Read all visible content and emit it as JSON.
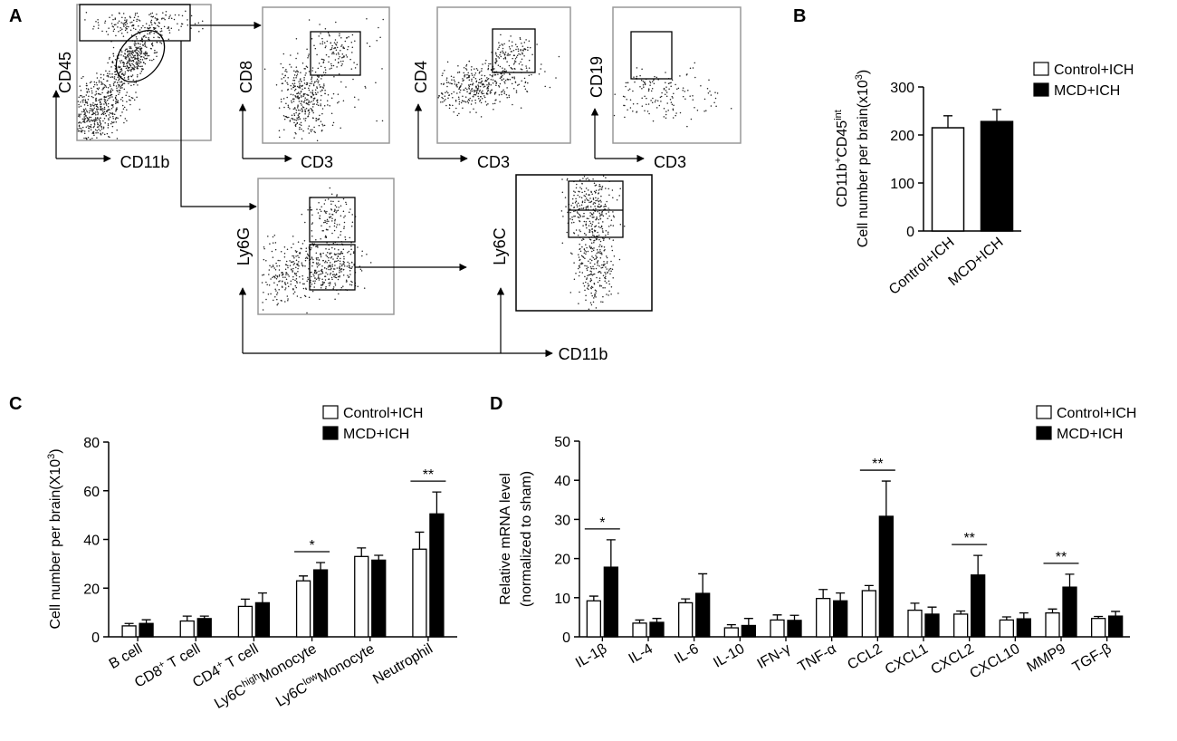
{
  "panels": [
    "A",
    "B",
    "C",
    "D"
  ],
  "panel_a": {
    "labels": [
      "CD45",
      "CD11b",
      "CD8",
      "CD3",
      "CD4",
      "CD3",
      "CD19",
      "CD3",
      "Ly6G",
      "Ly6C",
      "CD11b"
    ]
  },
  "chart_data": [
    {
      "type": "bar",
      "ylabel": [
        [
          {
            "text": "CD11b"
          },
          {
            "text": "+",
            "sup": true
          },
          {
            "text": "CD45"
          },
          {
            "text": "int",
            "sup": true
          }
        ],
        [
          {
            "text": "Cell number per brain(x10"
          },
          {
            "text": "3",
            "sup": true
          },
          {
            "text": ")"
          }
        ]
      ],
      "categories": [
        "Control+ICH",
        "MCD+ICH"
      ],
      "values": [
        215,
        228
      ],
      "errors": [
        25,
        25
      ],
      "colors": [
        "#ffffff",
        "#000000"
      ],
      "legend": [
        "Control+ICH",
        "MCD+ICH"
      ],
      "ylim": [
        0,
        300
      ],
      "yticks": [
        0,
        100,
        200,
        300
      ]
    },
    {
      "type": "grouped_bar",
      "ylabel": [
        [
          {
            "text": "Cell number per brain(X10"
          },
          {
            "text": "3",
            "sup": true
          },
          {
            "text": ")"
          }
        ]
      ],
      "categories": [
        [
          {
            "text": "B cell"
          }
        ],
        [
          {
            "text": "CD8"
          },
          {
            "text": "+",
            "sup": true
          },
          {
            "text": " T cell"
          }
        ],
        [
          {
            "text": "CD4"
          },
          {
            "text": "+",
            "sup": true
          },
          {
            "text": " T cell"
          }
        ],
        [
          {
            "text": "Ly6C"
          },
          {
            "text": "high",
            "sup": true
          },
          {
            "text": "Monocyte"
          }
        ],
        [
          {
            "text": "Ly6C"
          },
          {
            "text": "low",
            "sup": true
          },
          {
            "text": "Monocyte"
          }
        ],
        [
          {
            "text": "Neutrophil"
          }
        ]
      ],
      "series": [
        {
          "name": "Control+ICH",
          "color": "#ffffff",
          "values": [
            4.5,
            6.5,
            12.5,
            23,
            33,
            36
          ],
          "errors": [
            1,
            2,
            3,
            2,
            3.5,
            7
          ]
        },
        {
          "name": "MCD+ICH",
          "color": "#000000",
          "values": [
            5.5,
            7.5,
            14,
            27.5,
            31.5,
            50.5
          ],
          "errors": [
            1.5,
            1,
            4,
            3,
            2,
            9
          ]
        }
      ],
      "significance": [
        null,
        null,
        null,
        "*",
        null,
        "**"
      ],
      "ylim": [
        0,
        80
      ],
      "yticks": [
        0,
        20,
        40,
        60,
        80
      ]
    },
    {
      "type": "grouped_bar",
      "ylabel": [
        "Relative mRNA level",
        "(normalized to sham)"
      ],
      "categories": [
        "IL-1β",
        "IL-4",
        "IL-6",
        "IL-10",
        "IFN-γ",
        "TNF-α",
        "CCL2",
        "CXCL1",
        "CXCL2",
        "CXCL10",
        "MMP9",
        "TGF-β"
      ],
      "series": [
        {
          "name": "Control+ICH",
          "color": "#ffffff",
          "values": [
            9.2,
            3.5,
            8.7,
            2.3,
            4.3,
            9.8,
            11.8,
            6.8,
            5.8,
            4.3,
            6.1,
            4.7
          ],
          "errors": [
            1.2,
            0.8,
            1,
            0.8,
            1.3,
            2.3,
            1.3,
            1.8,
            0.8,
            0.8,
            1,
            0.5
          ]
        },
        {
          "name": "MCD+ICH",
          "color": "#000000",
          "values": [
            17.8,
            3.7,
            11.1,
            2.9,
            4.2,
            9.2,
            30.8,
            5.8,
            15.8,
            4.6,
            12.7,
            5.3
          ],
          "errors": [
            7,
            1,
            5,
            1.8,
            1.3,
            2,
            9,
            1.8,
            5,
            1.5,
            3.3,
            1.2
          ]
        }
      ],
      "significance": [
        "*",
        null,
        null,
        null,
        null,
        null,
        "**",
        null,
        "**",
        null,
        "**",
        null
      ],
      "ylim": [
        0,
        50
      ],
      "yticks": [
        0,
        10,
        20,
        30,
        40,
        50
      ]
    }
  ]
}
